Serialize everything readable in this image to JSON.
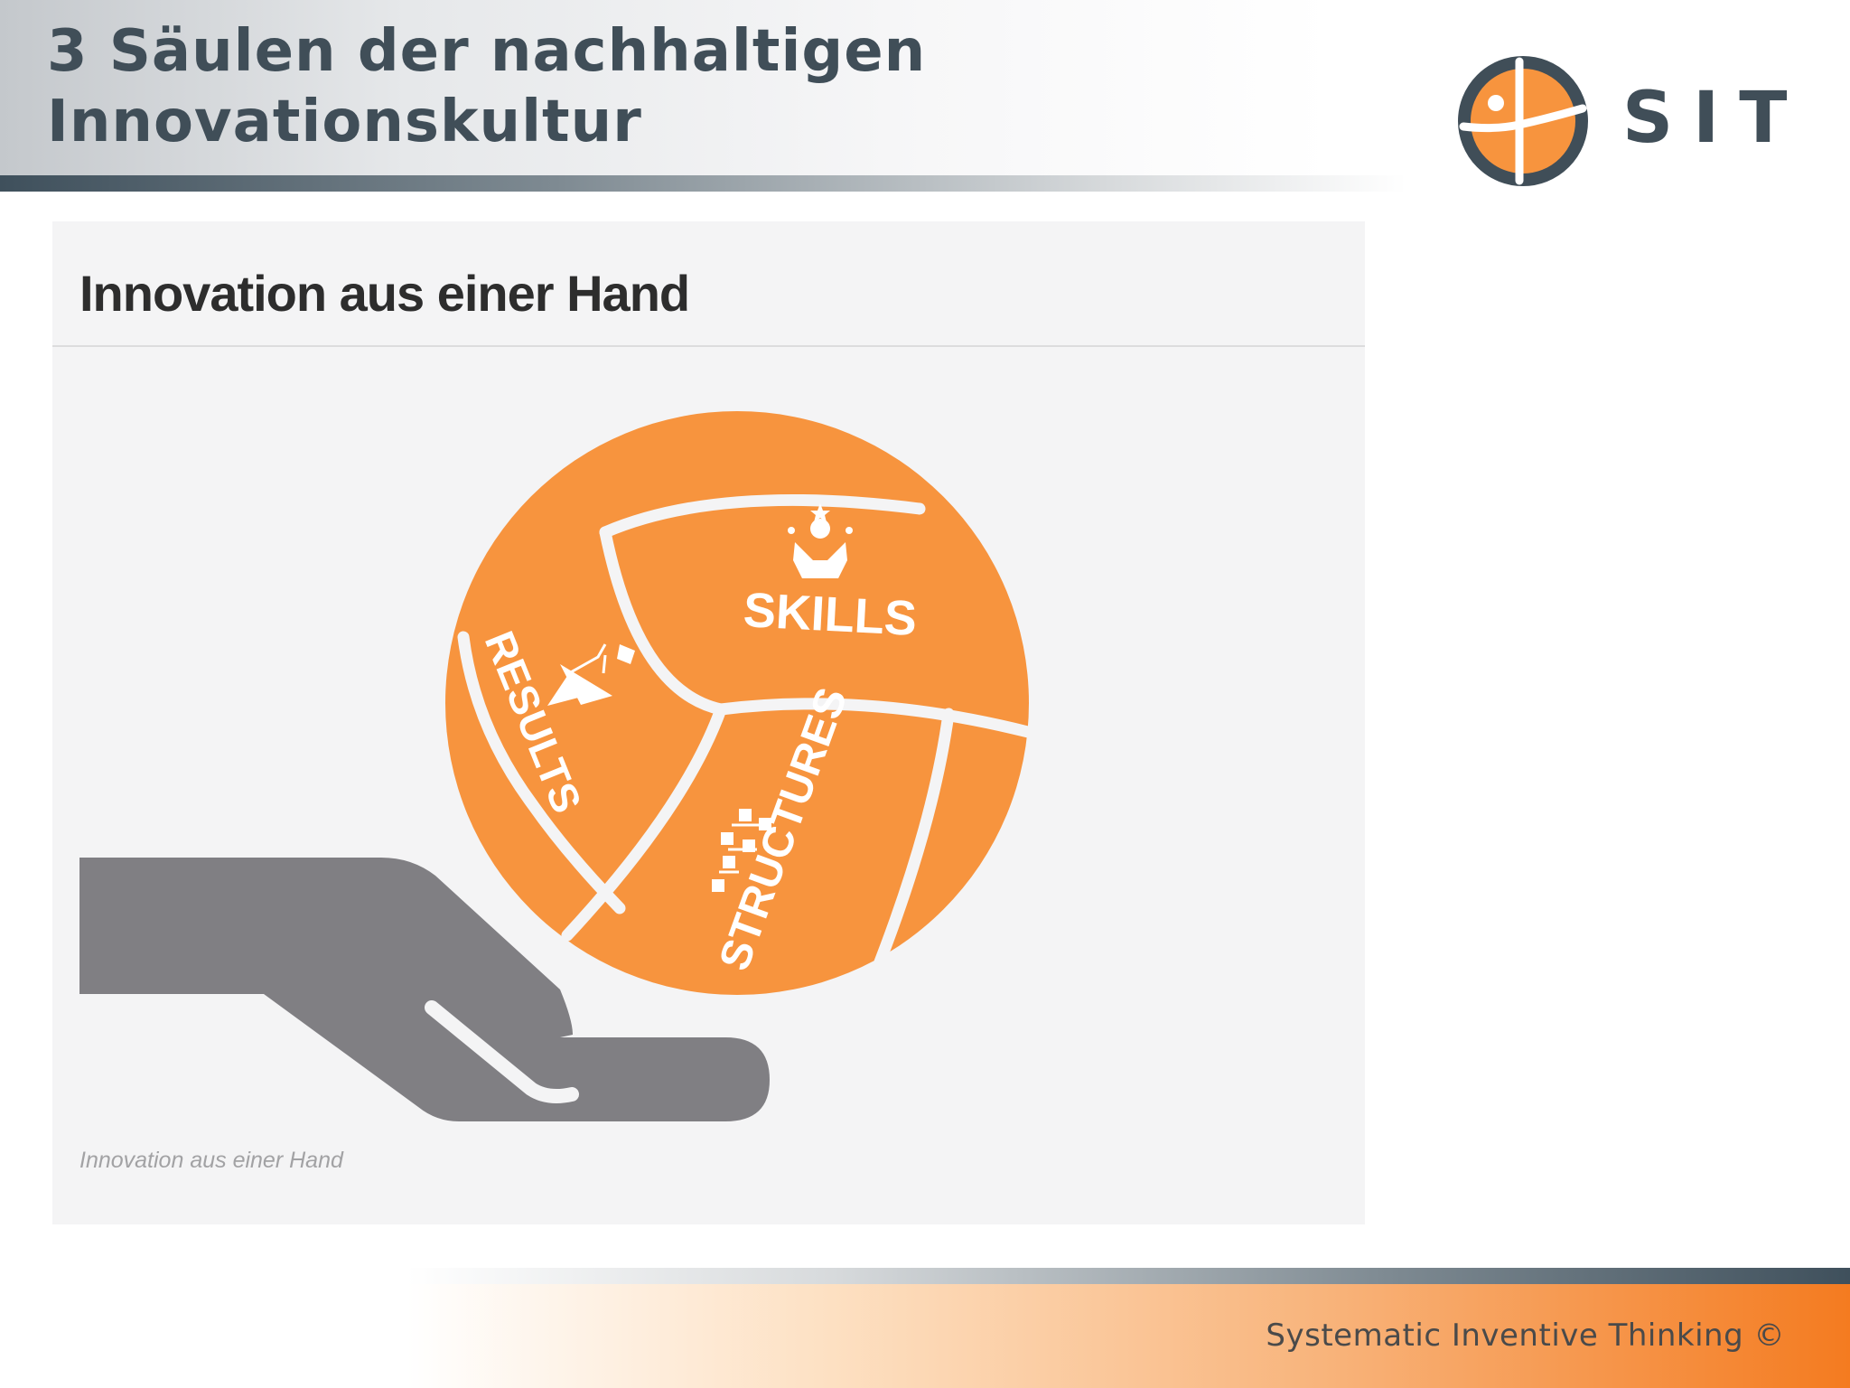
{
  "slide": {
    "title_line1": "3 Säulen der nachhaltigen",
    "title_line2": "Innovationskultur"
  },
  "logo": {
    "text": "SIT",
    "icon": "sit-logo-icon"
  },
  "panel": {
    "title": "Innovation aus einer Hand",
    "caption": "Innovation aus einer Hand"
  },
  "illustration": {
    "segments": {
      "skills": "SKILLS",
      "results": "RESULTS",
      "structures": "STRUCTURES"
    },
    "icons": [
      "skills-person-icon",
      "results-mountain-flag-icon",
      "structures-org-chart-icon",
      "hand-icon"
    ]
  },
  "footer": {
    "text": "Systematic Inventive Thinking ©"
  },
  "colors": {
    "brand_orange": "#f7943e",
    "brand_slate": "#404e58",
    "hand_gray": "#807f83"
  }
}
